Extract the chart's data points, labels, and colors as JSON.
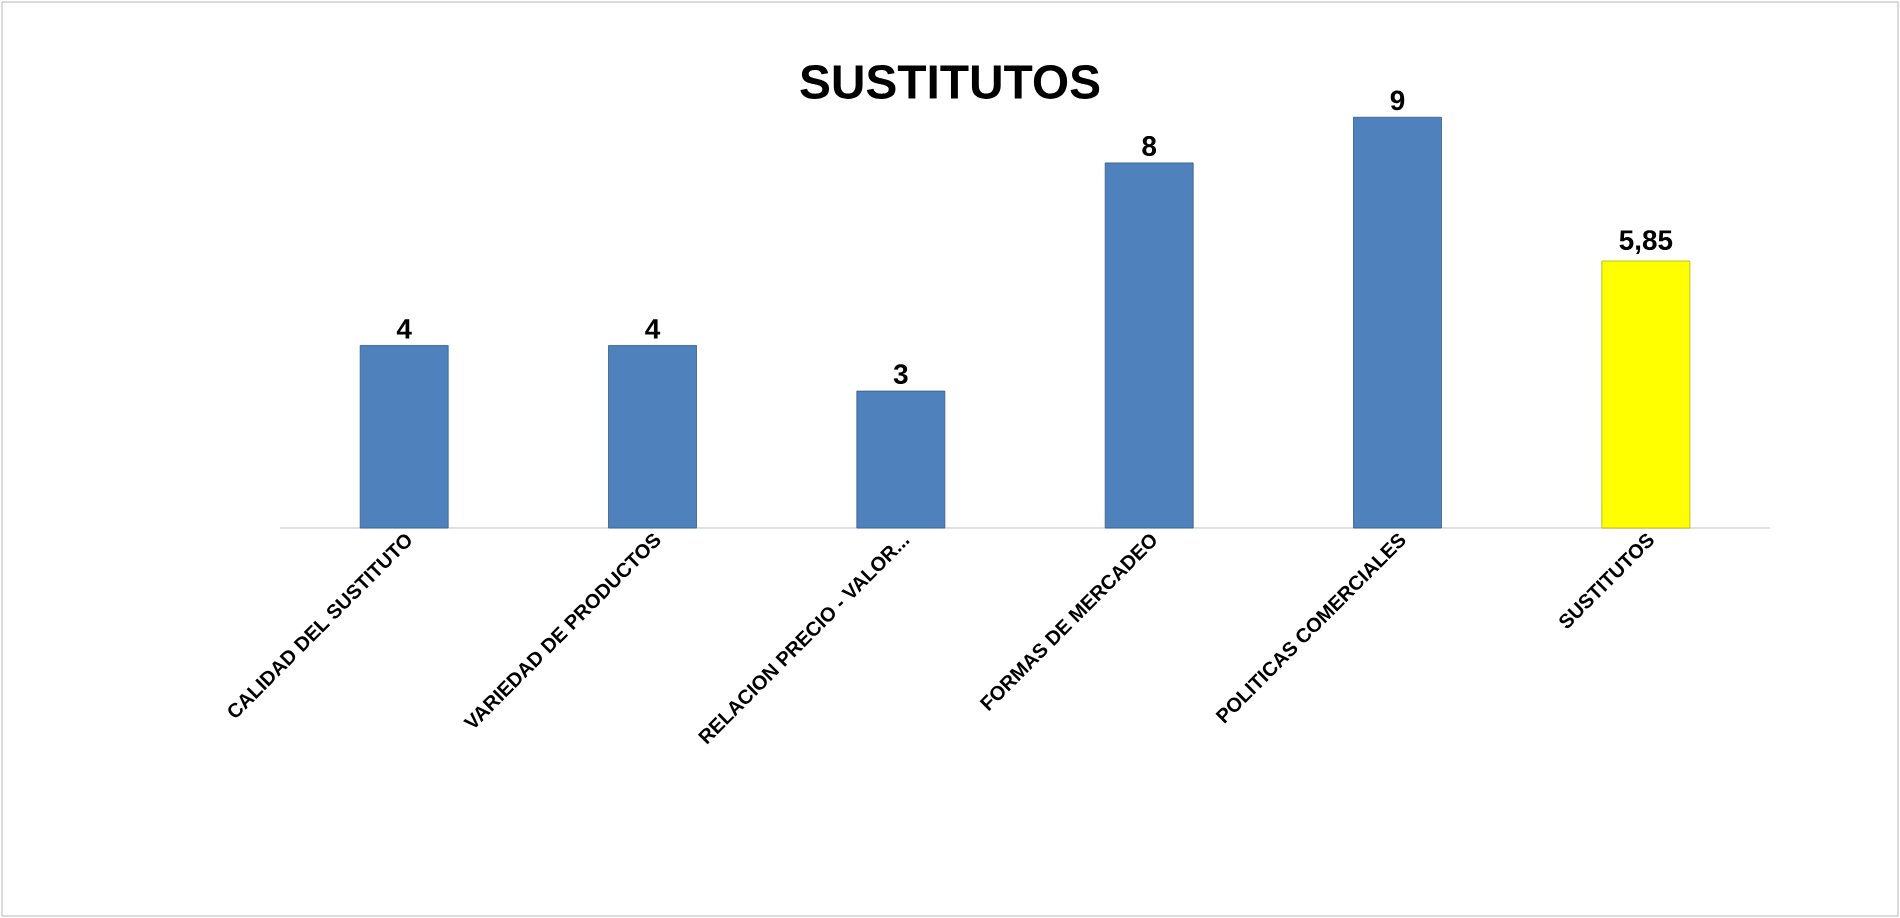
{
  "chart_data": {
    "type": "bar",
    "title": "SUSTITUTOS",
    "categories": [
      "CALIDAD DEL SUSTITUTO",
      "VARIEDAD DE PRODUCTOS",
      "RELACION PRECIO - VALOR...",
      "FORMAS DE MERCADEO",
      "POLITICAS COMERCIALES",
      "SUSTITUTOS"
    ],
    "values": [
      4,
      4,
      3,
      8,
      9,
      5.85
    ],
    "value_labels": [
      "4",
      "4",
      "3",
      "8",
      "9",
      "5,85"
    ],
    "colors": [
      "#4f81bd",
      "#4f81bd",
      "#4f81bd",
      "#4f81bd",
      "#4f81bd",
      "#ffff00"
    ]
  }
}
